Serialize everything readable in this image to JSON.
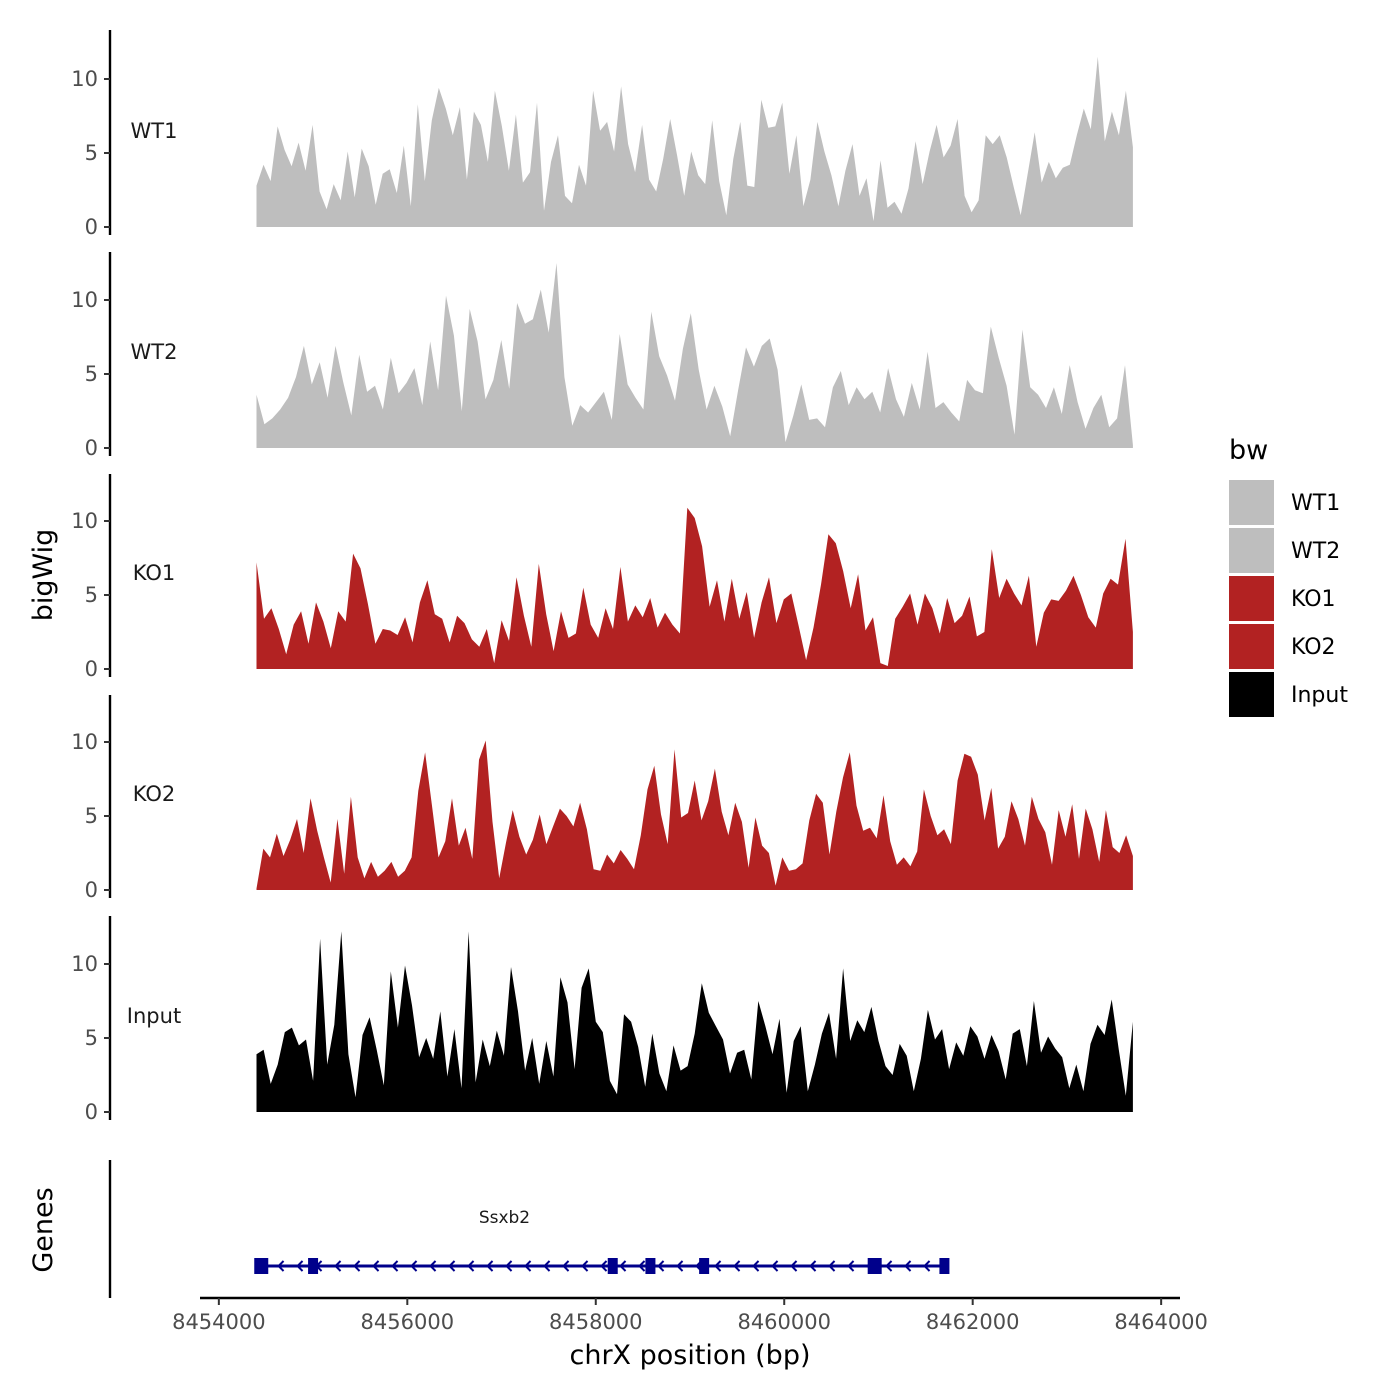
{
  "chart_data": {
    "type": "area",
    "title": "",
    "ylabel": "bigWig",
    "genes_label": "Genes",
    "xlabel": "chrX position (bp)",
    "xlim": [
      8453800,
      8464200
    ],
    "x_range": [
      8454400,
      8463700
    ],
    "x_ticks": [
      8454000,
      8456000,
      8458000,
      8460000,
      8462000,
      8464000
    ],
    "x_tick_labels": [
      "8454000",
      "8456000",
      "8458000",
      "8460000",
      "8462000",
      "8464000"
    ],
    "y_ticks": [
      0,
      5,
      10
    ],
    "y_tick_labels": [
      "0",
      "5",
      "10"
    ],
    "ylim": [
      0,
      13.5
    ],
    "legend": {
      "title": "bw",
      "position": "right",
      "entries": [
        {
          "label": "WT1",
          "color": "#bebebe"
        },
        {
          "label": "WT2",
          "color": "#bebebe"
        },
        {
          "label": "KO1",
          "color": "#b22222"
        },
        {
          "label": "KO2",
          "color": "#b22222"
        },
        {
          "label": "Input",
          "color": "#000000"
        }
      ]
    },
    "series": [
      {
        "name": "WT1",
        "color": "#bebebe",
        "values": [
          2.8,
          4.2,
          3.1,
          6.8,
          5.2,
          4.1,
          5.7,
          3.8,
          6.9,
          2.4,
          1.2,
          2.9,
          1.8,
          5.1,
          2.0,
          5.3,
          4.1,
          1.5,
          3.6,
          3.9,
          2.3,
          5.5,
          1.4,
          8.3,
          3.1,
          7.2,
          9.4,
          8.0,
          6.2,
          8.1,
          3.2,
          7.8,
          6.9,
          4.4,
          9.2,
          6.8,
          3.8,
          7.6,
          3.0,
          3.7,
          8.4,
          1.1,
          4.4,
          6.2,
          2.1,
          1.6,
          4.2,
          2.8,
          9.2,
          6.5,
          7.1,
          5.1,
          9.5,
          5.6,
          3.7,
          6.9,
          3.2,
          2.4,
          4.6,
          7.3,
          4.8,
          2.1,
          5.1,
          3.5,
          2.9,
          7.2,
          3.1,
          0.8,
          4.6,
          7.1,
          2.8,
          2.7,
          8.6,
          6.7,
          6.8,
          8.4,
          3.6,
          6.2,
          1.4,
          3.2,
          7.1,
          5.1,
          3.5,
          1.4,
          3.8,
          5.6,
          2.1,
          3.3,
          0.4,
          4.5,
          1.3,
          1.7,
          0.9,
          2.6,
          5.8,
          2.9,
          5.1,
          6.9,
          4.7,
          5.5,
          7.3,
          2.1,
          1.0,
          1.8,
          6.2,
          5.6,
          6.2,
          4.7,
          2.7,
          0.8,
          3.6,
          6.4,
          3.0,
          4.4,
          3.3,
          4.0,
          4.2,
          6.2,
          8.0,
          6.6,
          11.5,
          5.8,
          7.8,
          6.2,
          9.2,
          5.4
        ]
      },
      {
        "name": "WT2",
        "color": "#bebebe",
        "values": [
          3.6,
          1.6,
          2.0,
          2.6,
          3.4,
          4.8,
          6.9,
          4.3,
          5.8,
          3.4,
          6.9,
          4.4,
          2.2,
          6.3,
          3.8,
          4.2,
          2.6,
          6.1,
          3.7,
          4.4,
          5.4,
          2.9,
          7.2,
          3.9,
          10.3,
          7.6,
          2.5,
          9.4,
          7.2,
          3.3,
          4.6,
          7.3,
          4.0,
          9.8,
          8.4,
          8.7,
          10.7,
          7.8,
          12.5,
          4.8,
          1.5,
          2.9,
          2.4,
          3.1,
          3.8,
          1.9,
          7.7,
          4.3,
          3.4,
          2.6,
          9.2,
          6.2,
          4.9,
          3.2,
          6.7,
          9.1,
          5.3,
          2.6,
          4.2,
          2.8,
          0.8,
          3.9,
          6.8,
          5.5,
          6.9,
          7.4,
          5.3,
          0.4,
          2.2,
          4.3,
          1.9,
          2.0,
          1.4,
          4.1,
          5.2,
          2.9,
          4.1,
          3.3,
          3.8,
          2.4,
          5.4,
          3.3,
          2.1,
          4.4,
          2.6,
          6.5,
          2.7,
          3.1,
          2.4,
          1.8,
          4.6,
          3.9,
          3.7,
          8.2,
          6.1,
          4.2,
          0.9,
          8.0,
          4.1,
          3.6,
          2.7,
          4.1,
          2.3,
          5.6,
          3.1,
          1.3,
          2.7,
          3.6,
          1.4,
          2.0,
          5.6,
          0.2
        ]
      },
      {
        "name": "KO1",
        "color": "#b22222",
        "values": [
          7.2,
          3.4,
          4.1,
          2.7,
          1.0,
          3.0,
          3.9,
          1.7,
          4.5,
          3.2,
          1.4,
          3.9,
          3.2,
          7.8,
          6.8,
          4.4,
          1.7,
          2.7,
          2.6,
          2.3,
          3.5,
          1.8,
          4.5,
          6.0,
          3.7,
          3.4,
          1.8,
          3.6,
          3.1,
          2.0,
          1.5,
          2.7,
          0.4,
          3.3,
          1.9,
          6.2,
          3.6,
          1.5,
          7.1,
          3.7,
          1.2,
          3.9,
          2.1,
          2.4,
          5.5,
          3.0,
          2.1,
          4.1,
          2.7,
          6.9,
          3.2,
          4.3,
          3.5,
          4.8,
          2.8,
          3.8,
          3.0,
          2.4,
          10.9,
          10.2,
          8.3,
          4.2,
          6.0,
          3.2,
          6.1,
          3.4,
          5.2,
          2.1,
          4.5,
          6.2,
          3.1,
          4.7,
          5.1,
          2.9,
          0.6,
          2.8,
          5.7,
          9.1,
          8.5,
          6.6,
          4.1,
          6.4,
          2.6,
          3.5,
          0.4,
          0.2,
          3.4,
          4.2,
          5.1,
          3.0,
          5.1,
          4.1,
          2.4,
          4.8,
          3.1,
          3.6,
          4.9,
          2.2,
          2.5,
          8.1,
          4.8,
          6.1,
          5.1,
          4.3,
          6.3,
          1.5,
          3.8,
          4.7,
          4.6,
          5.3,
          6.3,
          5.0,
          3.5,
          2.8,
          5.1,
          6.1,
          5.7,
          8.8,
          2.5
        ]
      },
      {
        "name": "KO2",
        "color": "#b22222",
        "values": [
          0.1,
          2.8,
          2.2,
          3.8,
          2.3,
          3.4,
          4.8,
          2.5,
          6.2,
          4.0,
          2.2,
          0.5,
          4.8,
          1.1,
          6.3,
          2.2,
          0.8,
          1.9,
          0.9,
          1.3,
          1.9,
          0.9,
          1.3,
          2.2,
          6.7,
          9.3,
          5.8,
          2.2,
          3.3,
          6.2,
          3.0,
          4.2,
          2.1,
          8.8,
          10.1,
          4.6,
          0.8,
          3.2,
          5.4,
          3.6,
          2.4,
          3.4,
          5.1,
          3.1,
          4.3,
          5.5,
          5.0,
          4.3,
          5.9,
          4.1,
          1.4,
          1.3,
          2.4,
          1.8,
          2.7,
          2.1,
          1.4,
          3.7,
          6.8,
          8.4,
          5.1,
          3.1,
          9.5,
          4.9,
          5.2,
          7.4,
          4.7,
          6.0,
          8.2,
          5.3,
          3.7,
          5.9,
          4.6,
          1.5,
          4.9,
          3.0,
          2.5,
          0.3,
          2.2,
          1.3,
          1.4,
          1.8,
          4.7,
          6.5,
          5.9,
          2.4,
          5.3,
          7.6,
          9.3,
          5.7,
          4.0,
          4.2,
          3.5,
          6.4,
          3.3,
          1.7,
          2.2,
          1.6,
          2.6,
          6.8,
          5.0,
          3.7,
          4.1,
          3.1,
          7.4,
          9.2,
          9.0,
          7.8,
          4.7,
          6.9,
          2.8,
          3.6,
          6.0,
          4.8,
          3.0,
          6.3,
          4.8,
          3.9,
          1.7,
          5.4,
          3.6,
          5.8,
          2.1,
          5.5,
          4.1,
          1.9,
          5.4,
          2.9,
          2.5,
          3.7,
          2.3
        ]
      },
      {
        "name": "Input",
        "color": "#000000",
        "values": [
          3.9,
          4.2,
          1.9,
          3.2,
          5.4,
          5.7,
          4.5,
          4.9,
          2.1,
          11.7,
          3.2,
          5.9,
          12.2,
          3.9,
          1.0,
          5.2,
          6.4,
          4.2,
          1.8,
          9.5,
          5.7,
          9.9,
          7.2,
          3.7,
          5.0,
          3.6,
          6.8,
          2.4,
          5.6,
          1.6,
          12.2,
          2.0,
          4.9,
          3.1,
          5.5,
          3.8,
          9.8,
          6.8,
          2.8,
          5.0,
          1.9,
          4.8,
          2.4,
          9.1,
          7.4,
          2.9,
          8.4,
          9.7,
          6.1,
          5.4,
          2.1,
          1.2,
          6.6,
          6.1,
          4.4,
          1.7,
          5.3,
          2.6,
          1.4,
          4.5,
          2.8,
          3.1,
          5.3,
          8.7,
          6.7,
          5.8,
          4.9,
          2.6,
          4.0,
          4.2,
          2.2,
          7.5,
          5.8,
          3.9,
          6.3,
          1.3,
          4.8,
          5.8,
          1.4,
          3.2,
          5.3,
          6.7,
          3.6,
          9.7,
          4.8,
          6.2,
          5.4,
          7.1,
          4.8,
          3.1,
          2.5,
          4.6,
          3.8,
          1.4,
          3.6,
          6.9,
          4.9,
          5.6,
          2.9,
          4.7,
          3.8,
          5.8,
          5.1,
          3.6,
          5.2,
          4.1,
          2.2,
          5.3,
          5.6,
          3.1,
          7.5,
          4.0,
          5.1,
          4.3,
          3.7,
          1.6,
          3.2,
          1.4,
          4.6,
          5.9,
          5.2,
          7.6,
          4.2,
          1.1,
          6.1
        ]
      }
    ],
    "genes": [
      {
        "name": "Ssxb2",
        "strand": "-",
        "start": 8454400,
        "end": 8461700,
        "exons": [
          8454450,
          8455000,
          8458180,
          8458580,
          8459150,
          8460960,
          8461700
        ]
      }
    ]
  }
}
